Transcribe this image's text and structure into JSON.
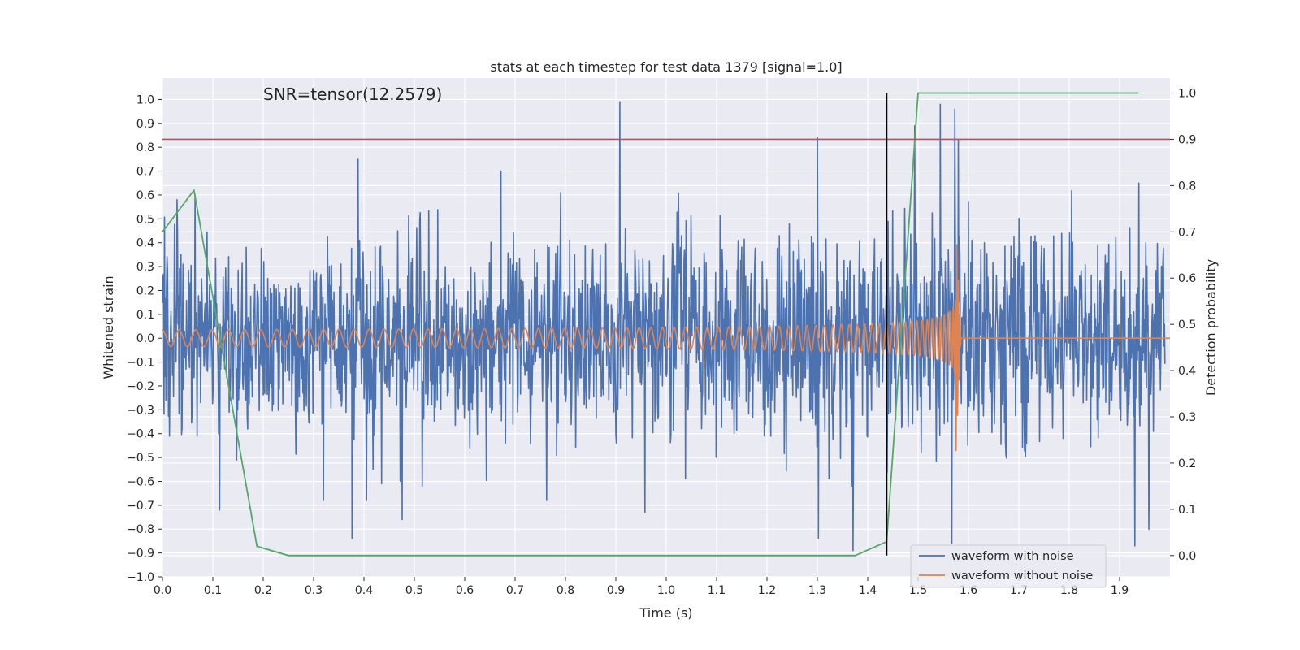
{
  "chart_data": {
    "type": "line",
    "title": "stats at each timestep for test data 1379 [signal=1.0]",
    "xlabel": "Time (s)",
    "ylabel": "Whitened strain",
    "y2label": "Detection probability",
    "annotation": "SNR=tensor(12.2579)",
    "xlim": [
      0.0,
      2.0
    ],
    "ylim": [
      -1.0,
      1.09
    ],
    "y2lim": [
      -0.046,
      1.0325
    ],
    "xticks": [
      0.0,
      0.1,
      0.2,
      0.3,
      0.4,
      0.5,
      0.6,
      0.7,
      0.8,
      0.9,
      1.0,
      1.1,
      1.2,
      1.3,
      1.4,
      1.5,
      1.6,
      1.7,
      1.8,
      1.9
    ],
    "xtick_labels": [
      "0.0",
      "0.1",
      "0.2",
      "0.3",
      "0.4",
      "0.5",
      "0.6",
      "0.7",
      "0.8",
      "0.9",
      "1.0",
      "1.1",
      "1.2",
      "1.3",
      "1.4",
      "1.5",
      "1.6",
      "1.7",
      "1.8",
      "1.9"
    ],
    "yticks": [
      -1.0,
      -0.9,
      -0.8,
      -0.7,
      -0.6,
      -0.5,
      -0.4,
      -0.3,
      -0.2,
      -0.1,
      0.0,
      0.1,
      0.2,
      0.3,
      0.4,
      0.5,
      0.6,
      0.7,
      0.8,
      0.9,
      1.0
    ],
    "ytick_labels": [
      "−1.0",
      "−0.9",
      "−0.8",
      "−0.7",
      "−0.6",
      "−0.5",
      "−0.4",
      "−0.3",
      "−0.2",
      "−0.1",
      "0.0",
      "0.1",
      "0.2",
      "0.3",
      "0.4",
      "0.5",
      "0.6",
      "0.7",
      "0.8",
      "0.9",
      "1.0"
    ],
    "y2ticks": [
      0.0,
      0.1,
      0.2,
      0.3,
      0.4,
      0.5,
      0.6,
      0.7,
      0.8,
      0.9,
      1.0
    ],
    "y2tick_labels": [
      "0.0",
      "0.1",
      "0.2",
      "0.3",
      "0.4",
      "0.5",
      "0.6",
      "0.7",
      "0.8",
      "0.9",
      "1.0"
    ],
    "grid": true,
    "legend_location": "lower-right",
    "noisy_waveform": {
      "name": "waveform with noise",
      "color": "#4c72b0",
      "x_start": 0.0,
      "x_end": 1.99,
      "amplitude": 0.36,
      "peaks": [
        {
          "x": 0.065,
          "y": 0.6
        },
        {
          "x": 0.113,
          "y": -0.72
        },
        {
          "x": 0.388,
          "y": 0.75
        },
        {
          "x": 0.376,
          "y": -0.84
        },
        {
          "x": 0.476,
          "y": -0.76
        },
        {
          "x": 0.672,
          "y": 0.7
        },
        {
          "x": 0.908,
          "y": 0.99
        },
        {
          "x": 0.958,
          "y": -0.73
        },
        {
          "x": 1.3,
          "y": 0.84
        },
        {
          "x": 1.302,
          "y": -0.84
        },
        {
          "x": 1.371,
          "y": -0.89
        },
        {
          "x": 1.493,
          "y": 0.89
        },
        {
          "x": 1.544,
          "y": 0.98
        },
        {
          "x": 1.573,
          "y": 0.96
        },
        {
          "x": 1.58,
          "y": 0.83
        },
        {
          "x": 1.567,
          "y": -0.86
        },
        {
          "x": 1.938,
          "y": 0.65
        },
        {
          "x": 1.93,
          "y": -0.87
        },
        {
          "x": 1.958,
          "y": -0.8
        }
      ]
    },
    "clean_waveform": {
      "name": "waveform without noise",
      "color": "#dd8452",
      "merger_x": 1.575,
      "ringdown_end_x": 1.585,
      "start_amplitude": 0.035,
      "peak_amplitude": 0.49,
      "start_frequency_hz": 30,
      "end_frequency_hz": 330,
      "post_merger_value": 0.0
    },
    "detection_probability": {
      "color": "#55a868",
      "x": [
        0.0,
        0.0625,
        0.1875,
        0.25,
        1.375,
        1.4375,
        1.5,
        1.9375
      ],
      "y": [
        0.7,
        0.79,
        0.02,
        0.0,
        0.0,
        0.03,
        1.0,
        1.0
      ]
    },
    "threshold": {
      "value": 0.9,
      "axis": "right",
      "color": "#c44e52"
    },
    "marker_line": {
      "x": 1.4375,
      "y_from": 0.0,
      "y_to": 1.0,
      "axis": "right",
      "color": "#000000"
    },
    "legend": [
      {
        "label": "waveform with noise",
        "color": "#4c72b0"
      },
      {
        "label": "waveform without noise",
        "color": "#dd8452"
      }
    ]
  }
}
